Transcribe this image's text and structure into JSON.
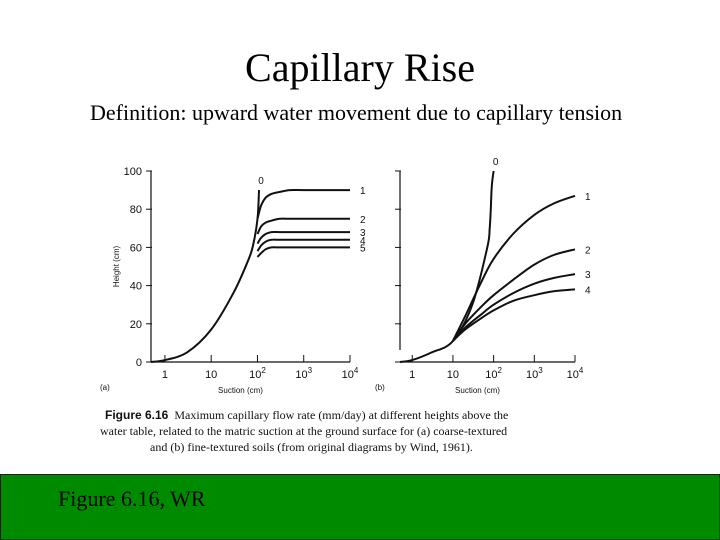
{
  "slide": {
    "title": "Capillary Rise",
    "subtitle": "Definition: upward water movement due to capillary tension",
    "footer": "Figure 6.16, WR"
  },
  "figure": {
    "caption_number": "Figure 6.16",
    "caption_line1": "Maximum capillary flow rate (mm/day) at different heights above the",
    "caption_line2": "water table, related to the matric suction at the ground surface for (a) coarse-textured",
    "caption_line3": "and (b) fine-textured soils (from original diagrams by Wind, 1961).",
    "panel_a_label": "(a)",
    "panel_b_label": "(b)"
  },
  "chart_data": [
    {
      "type": "line",
      "panel": "(a)",
      "xlabel": "Suction (cm)",
      "ylabel": "Height (cm)",
      "x_scale": "log",
      "xlim": [
        0.5,
        10000
      ],
      "ylim": [
        0,
        100
      ],
      "xticks": [
        "1",
        "10",
        "10^2",
        "10^3",
        "10^4"
      ],
      "yticks": [
        "0",
        "20",
        "40",
        "60",
        "80",
        "100"
      ],
      "series": [
        {
          "name": "0",
          "x": [
            0.5,
            1,
            3,
            10,
            30,
            60,
            80,
            100,
            108
          ],
          "y": [
            0,
            1,
            5,
            17,
            36,
            52,
            61,
            75,
            90
          ]
        },
        {
          "name": "1",
          "x": [
            100,
            120,
            150,
            200,
            300,
            500,
            1000,
            3000,
            10000
          ],
          "y": [
            75,
            82,
            86,
            88,
            89,
            90,
            90,
            90,
            90
          ]
        },
        {
          "name": "2",
          "x": [
            100,
            120,
            150,
            200,
            300,
            500,
            1000,
            3000,
            10000
          ],
          "y": [
            67,
            71,
            73,
            74,
            75,
            75,
            75,
            75,
            75
          ]
        },
        {
          "name": "3",
          "x": [
            100,
            120,
            150,
            200,
            300,
            500,
            1000,
            3000,
            10000
          ],
          "y": [
            62,
            65,
            67,
            68,
            68,
            68,
            68,
            68,
            68
          ]
        },
        {
          "name": "4",
          "x": [
            100,
            120,
            150,
            200,
            300,
            500,
            1000,
            3000,
            10000
          ],
          "y": [
            58,
            61,
            63,
            64,
            64,
            64,
            64,
            64,
            64
          ]
        },
        {
          "name": "5",
          "x": [
            100,
            120,
            150,
            200,
            300,
            500,
            1000,
            3000,
            10000
          ],
          "y": [
            55,
            57,
            59,
            60,
            60,
            60,
            60,
            60,
            60
          ]
        }
      ]
    },
    {
      "type": "line",
      "panel": "(b)",
      "xlabel": "Suction (cm)",
      "x_scale": "log",
      "xlim": [
        0.5,
        10000
      ],
      "ylim": [
        0,
        100
      ],
      "xticks": [
        "1",
        "10",
        "10^2",
        "10^3",
        "10^4"
      ],
      "series": [
        {
          "name": "0",
          "x": [
            0.5,
            1,
            3,
            10,
            30,
            70,
            80,
            85,
            90,
            100
          ],
          "y": [
            0,
            1,
            5,
            11,
            30,
            60,
            70,
            80,
            92,
            100
          ]
        },
        {
          "name": "1",
          "x": [
            10,
            20,
            50,
            100,
            300,
            1000,
            3000,
            10000
          ],
          "y": [
            11,
            24,
            42,
            54,
            67,
            77,
            83,
            87
          ]
        },
        {
          "name": "2",
          "x": [
            10,
            20,
            50,
            100,
            300,
            1000,
            3000,
            10000
          ],
          "y": [
            11,
            20,
            29,
            35,
            43,
            51,
            56,
            59
          ]
        },
        {
          "name": "3",
          "x": [
            10,
            20,
            50,
            100,
            300,
            1000,
            3000,
            10000
          ],
          "y": [
            11,
            18,
            25,
            30,
            36,
            41,
            44,
            46
          ]
        },
        {
          "name": "4",
          "x": [
            10,
            20,
            50,
            100,
            300,
            1000,
            3000,
            10000
          ],
          "y": [
            11,
            17,
            23,
            27,
            32,
            35,
            37,
            38
          ]
        }
      ]
    }
  ]
}
